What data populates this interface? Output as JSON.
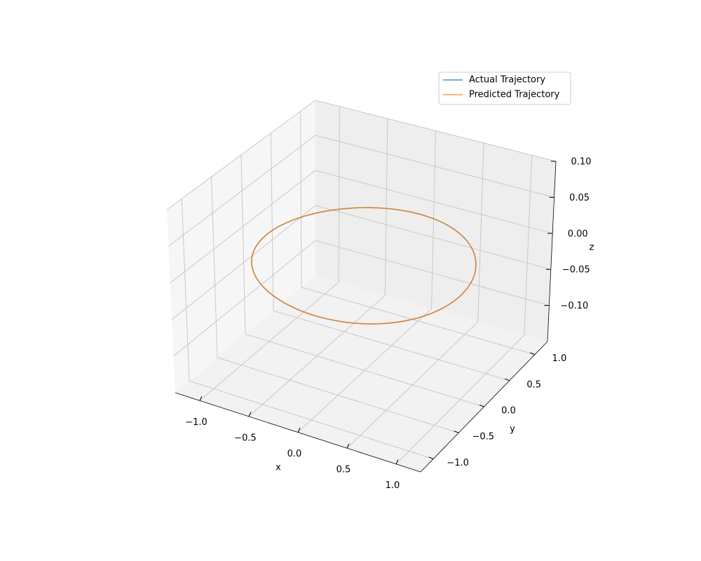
{
  "chart_data": {
    "type": "line3d",
    "title": "",
    "xlabel": "x",
    "ylabel": "y",
    "zlabel": "z",
    "xlim": [
      -1.25,
      1.25
    ],
    "ylim": [
      -1.25,
      1.25
    ],
    "zlim": [
      -0.15,
      0.1
    ],
    "x_ticks": [
      -1.0,
      -0.5,
      0.0,
      0.5,
      1.0
    ],
    "x_tick_labels": [
      "−1.0",
      "−0.5",
      "0.0",
      "0.5",
      "1.0"
    ],
    "y_ticks": [
      -1.0,
      -0.5,
      0.0,
      0.5,
      1.0
    ],
    "y_tick_labels": [
      "−1.0",
      "−0.5",
      "0.0",
      "0.5",
      "1.0"
    ],
    "z_ticks": [
      -0.1,
      -0.05,
      0.0,
      0.05,
      0.1
    ],
    "z_tick_labels": [
      "−0.10",
      "−0.05",
      "0.00",
      "0.05",
      "0.10"
    ],
    "grid": true,
    "legend_position": "top-right",
    "series": [
      {
        "name": "Actual Trajectory",
        "color": "#1f77b4",
        "shape": "circle",
        "radius": 1.0,
        "z": 0.0
      },
      {
        "name": "Predicted Trajectory",
        "color": "#ff7f0e",
        "shape": "circle",
        "radius": 1.0,
        "z": 0.0
      }
    ]
  },
  "legend": {
    "items": [
      {
        "label": "Actual Trajectory",
        "color": "#1f77b4"
      },
      {
        "label": "Predicted Trajectory",
        "color": "#ff7f0e"
      }
    ]
  }
}
